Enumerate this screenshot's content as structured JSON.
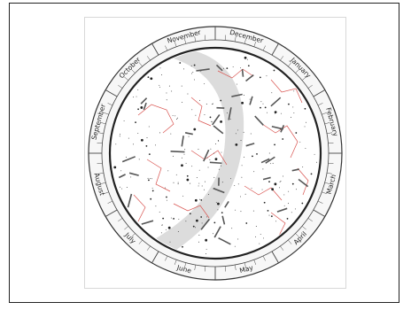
{
  "months": [
    "December",
    "January",
    "February",
    "March",
    "April",
    "May",
    "June",
    "July",
    "August",
    "September",
    "October",
    "November"
  ],
  "colors": {
    "constellation_lines": "#d9534f",
    "stars": "#222222",
    "milky_way": "#dcdcdc",
    "ring_fill": "#f5f5f5",
    "frame": "#222222"
  }
}
